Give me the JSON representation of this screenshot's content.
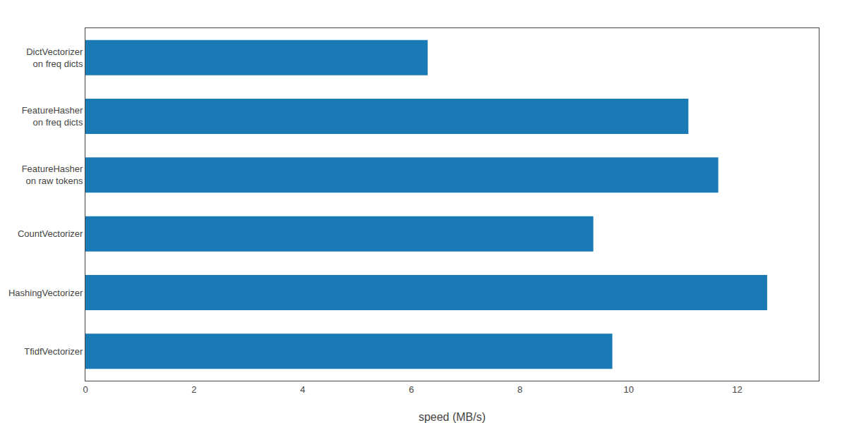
{
  "chart_data": {
    "type": "bar",
    "orientation": "horizontal",
    "categories": [
      "DictVectorizer\n on freq dicts",
      "FeatureHasher\n on freq dicts",
      "FeatureHasher\n on raw tokens",
      "CountVectorizer",
      "HashingVectorizer",
      "TfidfVectorizer"
    ],
    "values": [
      6.3,
      11.1,
      11.65,
      9.35,
      12.55,
      9.7
    ],
    "color": "#1a7ab5",
    "xlabel": "speed (MB/s)",
    "xlim": [
      0,
      13.5
    ],
    "xticks": [
      0,
      2,
      4,
      6,
      8,
      10,
      12
    ],
    "grid": false
  }
}
